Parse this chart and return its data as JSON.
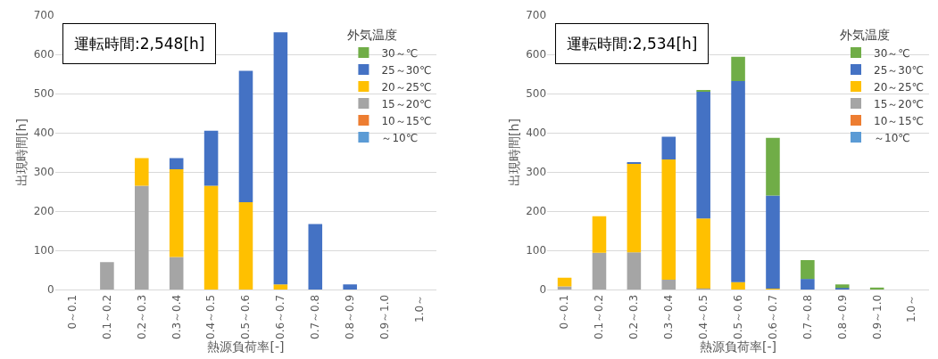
{
  "chart_data": [
    {
      "type": "bar",
      "stacked": true,
      "xlabel": "熱源負荷率[-]",
      "ylabel": "出現時間[h]",
      "legend_title": "外気温度",
      "legend": "top right",
      "grid": "y",
      "annotations": [
        "運転時間:2,548[h]"
      ],
      "categories": [
        "0～0.1",
        "0.1～0.2",
        "0.2～0.3",
        "0.3～0.4",
        "0.4～0.5",
        "0.5～0.6",
        "0.6～0.7",
        "0.7～0.8",
        "0.8～0.9",
        "0.9～1.0",
        "1.0～"
      ],
      "ylim": [
        0,
        700
      ],
      "yticks": [
        0,
        100,
        200,
        300,
        400,
        500,
        600,
        700
      ],
      "series": [
        {
          "name": "～10℃",
          "color": "#5b9bd5",
          "values": [
            0,
            0,
            0,
            0,
            0,
            0,
            0,
            0,
            0,
            0,
            0
          ]
        },
        {
          "name": "10～15℃",
          "color": "#ed7d31",
          "values": [
            0,
            0,
            0,
            0,
            0,
            0,
            0,
            0,
            0,
            0,
            0
          ]
        },
        {
          "name": "15～20℃",
          "color": "#a5a5a5",
          "values": [
            0,
            70,
            265,
            83,
            0,
            0,
            0,
            0,
            0,
            0,
            0
          ]
        },
        {
          "name": "20～25℃",
          "color": "#ffc000",
          "values": [
            0,
            0,
            70,
            224,
            265,
            223,
            13,
            0,
            0,
            0,
            0
          ]
        },
        {
          "name": "25～30℃",
          "color": "#4472c4",
          "values": [
            0,
            0,
            0,
            28,
            140,
            335,
            643,
            167,
            13,
            0,
            0
          ]
        },
        {
          "name": "30～℃",
          "color": "#70ad47",
          "values": [
            0,
            0,
            0,
            0,
            0,
            0,
            0,
            0,
            0,
            0,
            0
          ]
        }
      ]
    },
    {
      "type": "bar",
      "stacked": true,
      "xlabel": "熱源負荷率[-]",
      "ylabel": "出現時間[h]",
      "legend_title": "外気温度",
      "legend": "top right",
      "grid": "y",
      "annotations": [
        "運転時間:2,534[h]"
      ],
      "categories": [
        "0～0.1",
        "0.1～0.2",
        "0.2～0.3",
        "0.3～0.4",
        "0.4～0.5",
        "0.5～0.6",
        "0.6～0.7",
        "0.7～0.8",
        "0.8～0.9",
        "0.9～1.0",
        "1.0～"
      ],
      "ylim": [
        0,
        700
      ],
      "yticks": [
        0,
        100,
        200,
        300,
        400,
        500,
        600,
        700
      ],
      "series": [
        {
          "name": "～10℃",
          "color": "#5b9bd5",
          "values": [
            0,
            0,
            0,
            0,
            0,
            0,
            0,
            0,
            0,
            0,
            0
          ]
        },
        {
          "name": "10～15℃",
          "color": "#ed7d31",
          "values": [
            0,
            0,
            0,
            0,
            0,
            0,
            0,
            0,
            0,
            0,
            0
          ]
        },
        {
          "name": "15～20℃",
          "color": "#a5a5a5",
          "values": [
            8,
            94,
            95,
            25,
            3,
            0,
            0,
            0,
            0,
            0,
            null
          ]
        },
        {
          "name": "20～25℃",
          "color": "#ffc000",
          "values": [
            22,
            93,
            227,
            307,
            178,
            19,
            2,
            0,
            0,
            0,
            0
          ]
        },
        {
          "name": "25～30℃",
          "color": "#4472c4",
          "values": [
            0,
            0,
            2,
            58,
            324,
            513,
            238,
            27,
            4,
            0,
            0
          ]
        },
        {
          "name": "30～℃",
          "color": "#70ad47",
          "values": [
            0,
            0,
            0,
            0,
            2,
            62,
            147,
            48,
            9,
            5,
            0
          ]
        }
      ]
    }
  ]
}
